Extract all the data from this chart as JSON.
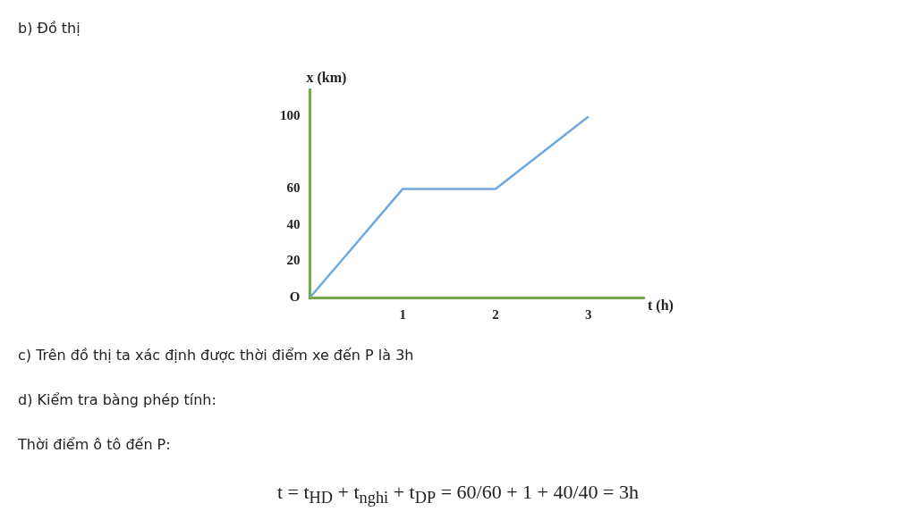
{
  "chart_data": {
    "type": "line",
    "title": "b) Đồ thị",
    "xlabel": "t (h)",
    "ylabel": "x (km)",
    "x": [
      0,
      1,
      2,
      3
    ],
    "series": [
      {
        "color": "#6fa8dc",
        "values": [
          0,
          60,
          60,
          100
        ]
      }
    ],
    "xlim": [
      0,
      3.6
    ],
    "xticks": [
      1,
      2,
      3
    ],
    "ylim": [
      0,
      115
    ],
    "yticks": [
      {
        "value": 0,
        "label": "O"
      },
      20,
      40,
      60,
      100
    ],
    "grid": false,
    "legend": false,
    "marker": "none",
    "line_style": "solid",
    "annotations": [
      "c) Trên đồ thị ta xác định được thời điểm xe đến P là 3h",
      "d) Kiểm tra bàng phép tính:",
      "Thời điểm ô tô đến P:",
      "t = t$_{HD}$ + t$_{nghi}$ + t$_{DP}$ = 60/60 + 1 + 40/40 = 3h"
    ]
  }
}
